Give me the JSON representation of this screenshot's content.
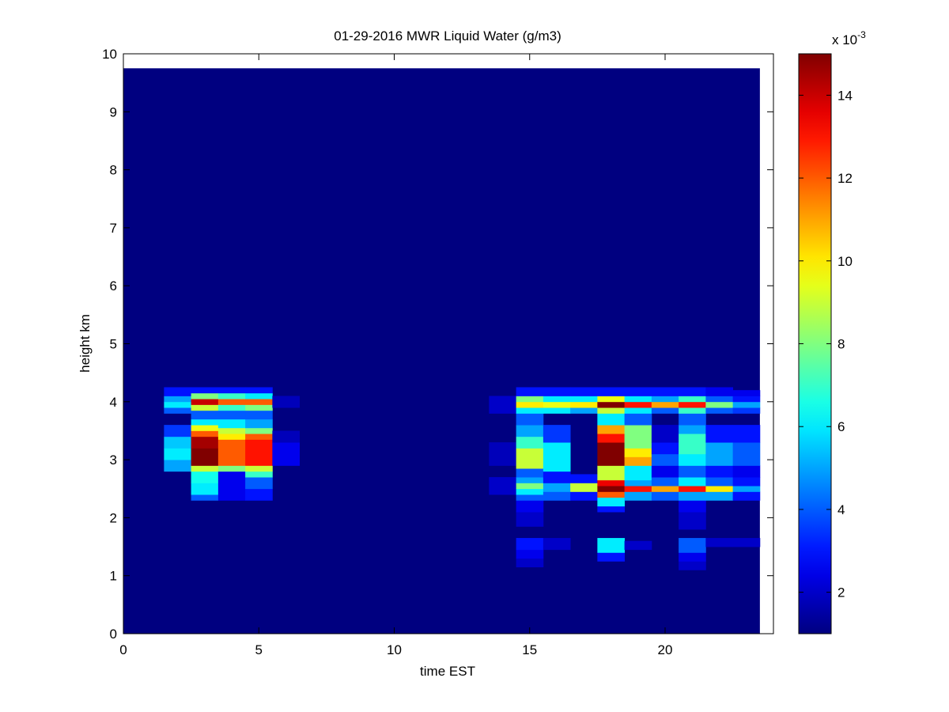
{
  "chart_data": {
    "type": "heatmap",
    "title": "01-29-2016 MWR Liquid Water (g/m3)",
    "xlabel": "time EST",
    "ylabel": "height km",
    "xlim": [
      0,
      24
    ],
    "ylim": [
      0,
      10
    ],
    "x_ticks": [
      0,
      5,
      10,
      15,
      20
    ],
    "y_ticks": [
      0,
      1,
      2,
      3,
      4,
      5,
      6,
      7,
      8,
      9,
      10
    ],
    "x_tick_labels": [
      "0",
      "5",
      "10",
      "15",
      "20"
    ],
    "y_tick_labels": [
      "0",
      "1",
      "2",
      "3",
      "4",
      "5",
      "6",
      "7",
      "8",
      "9",
      "10"
    ],
    "data_extent": {
      "x": [
        0,
        23.5
      ],
      "y": [
        0,
        9.75
      ]
    },
    "grid": false,
    "colormap": "jet",
    "colorbar": {
      "exponent_label": "x 10",
      "exponent": "-3",
      "range": [
        1,
        15
      ],
      "ticks": [
        2,
        4,
        6,
        8,
        10,
        12,
        14
      ],
      "tick_labels": [
        "2",
        "4",
        "6",
        "8",
        "10",
        "12",
        "14"
      ]
    },
    "background_value": 1,
    "columns": [
      {
        "x0": 1.5,
        "x1": 2.5,
        "cells": [
          {
            "y0": 2.8,
            "y1": 3.0,
            "v": 5.0
          },
          {
            "y0": 3.0,
            "y1": 3.2,
            "v": 6.0
          },
          {
            "y0": 3.2,
            "y1": 3.4,
            "v": 5.5
          },
          {
            "y0": 3.4,
            "y1": 3.6,
            "v": 3.5
          },
          {
            "y0": 3.8,
            "y1": 3.9,
            "v": 4.0
          },
          {
            "y0": 3.9,
            "y1": 4.0,
            "v": 6.0
          },
          {
            "y0": 4.0,
            "y1": 4.1,
            "v": 5.0
          },
          {
            "y0": 4.1,
            "y1": 4.25,
            "v": 3.0
          }
        ]
      },
      {
        "x0": 2.5,
        "x1": 3.5,
        "cells": [
          {
            "y0": 2.3,
            "y1": 2.4,
            "v": 4.0
          },
          {
            "y0": 2.4,
            "y1": 2.6,
            "v": 6.0
          },
          {
            "y0": 2.6,
            "y1": 2.8,
            "v": 6.5
          },
          {
            "y0": 2.8,
            "y1": 2.9,
            "v": 9.0
          },
          {
            "y0": 2.9,
            "y1": 3.2,
            "v": 15.0
          },
          {
            "y0": 3.2,
            "y1": 3.4,
            "v": 14.5
          },
          {
            "y0": 3.4,
            "y1": 3.5,
            "v": 12.0
          },
          {
            "y0": 3.5,
            "y1": 3.6,
            "v": 9.5
          },
          {
            "y0": 3.6,
            "y1": 3.7,
            "v": 6.0
          },
          {
            "y0": 3.7,
            "y1": 3.85,
            "v": 4.0
          },
          {
            "y0": 3.85,
            "y1": 3.95,
            "v": 9.0
          },
          {
            "y0": 3.95,
            "y1": 4.05,
            "v": 14.0
          },
          {
            "y0": 4.05,
            "y1": 4.15,
            "v": 8.0
          },
          {
            "y0": 4.15,
            "y1": 4.25,
            "v": 3.0
          }
        ]
      },
      {
        "x0": 3.5,
        "x1": 4.5,
        "cells": [
          {
            "y0": 2.3,
            "y1": 2.8,
            "v": 2.5
          },
          {
            "y0": 2.8,
            "y1": 2.9,
            "v": 8.0
          },
          {
            "y0": 2.9,
            "y1": 3.35,
            "v": 12.0
          },
          {
            "y0": 3.35,
            "y1": 3.45,
            "v": 10.0
          },
          {
            "y0": 3.45,
            "y1": 3.55,
            "v": 9.0
          },
          {
            "y0": 3.55,
            "y1": 3.7,
            "v": 6.0
          },
          {
            "y0": 3.7,
            "y1": 3.85,
            "v": 4.0
          },
          {
            "y0": 3.85,
            "y1": 3.95,
            "v": 7.0
          },
          {
            "y0": 3.95,
            "y1": 4.05,
            "v": 12.0
          },
          {
            "y0": 4.05,
            "y1": 4.15,
            "v": 7.0
          },
          {
            "y0": 4.15,
            "y1": 4.25,
            "v": 3.0
          }
        ]
      },
      {
        "x0": 4.5,
        "x1": 5.5,
        "cells": [
          {
            "y0": 2.3,
            "y1": 2.5,
            "v": 3.0
          },
          {
            "y0": 2.5,
            "y1": 2.7,
            "v": 4.0
          },
          {
            "y0": 2.7,
            "y1": 2.8,
            "v": 7.0
          },
          {
            "y0": 2.8,
            "y1": 2.9,
            "v": 9.0
          },
          {
            "y0": 2.9,
            "y1": 3.35,
            "v": 13.0
          },
          {
            "y0": 3.35,
            "y1": 3.45,
            "v": 12.0
          },
          {
            "y0": 3.45,
            "y1": 3.55,
            "v": 8.0
          },
          {
            "y0": 3.55,
            "y1": 3.7,
            "v": 5.0
          },
          {
            "y0": 3.7,
            "y1": 3.85,
            "v": 4.0
          },
          {
            "y0": 3.85,
            "y1": 3.95,
            "v": 8.0
          },
          {
            "y0": 3.95,
            "y1": 4.05,
            "v": 12.0
          },
          {
            "y0": 4.05,
            "y1": 4.15,
            "v": 6.0
          },
          {
            "y0": 4.15,
            "y1": 4.25,
            "v": 3.0
          }
        ]
      },
      {
        "x0": 5.5,
        "x1": 6.5,
        "cells": [
          {
            "y0": 2.9,
            "y1": 3.3,
            "v": 2.5
          },
          {
            "y0": 3.3,
            "y1": 3.5,
            "v": 1.8
          },
          {
            "y0": 3.9,
            "y1": 4.1,
            "v": 1.8
          }
        ]
      },
      {
        "x0": 13.5,
        "x1": 14.5,
        "cells": [
          {
            "y0": 2.4,
            "y1": 2.7,
            "v": 2.0
          },
          {
            "y0": 2.9,
            "y1": 3.3,
            "v": 1.8
          },
          {
            "y0": 3.8,
            "y1": 4.1,
            "v": 2.0
          }
        ]
      },
      {
        "x0": 14.5,
        "x1": 15.5,
        "cells": [
          {
            "y0": 1.15,
            "y1": 1.3,
            "v": 2.0
          },
          {
            "y0": 1.3,
            "y1": 1.45,
            "v": 2.5
          },
          {
            "y0": 1.45,
            "y1": 1.65,
            "v": 3.0
          },
          {
            "y0": 1.85,
            "y1": 2.1,
            "v": 2.0
          },
          {
            "y0": 2.1,
            "y1": 2.3,
            "v": 2.5
          },
          {
            "y0": 2.3,
            "y1": 2.4,
            "v": 4.0
          },
          {
            "y0": 2.4,
            "y1": 2.5,
            "v": 6.0
          },
          {
            "y0": 2.5,
            "y1": 2.6,
            "v": 8.0
          },
          {
            "y0": 2.6,
            "y1": 2.7,
            "v": 5.0
          },
          {
            "y0": 2.7,
            "y1": 2.85,
            "v": 4.0
          },
          {
            "y0": 2.85,
            "y1": 3.2,
            "v": 9.0
          },
          {
            "y0": 3.2,
            "y1": 3.4,
            "v": 7.0
          },
          {
            "y0": 3.4,
            "y1": 3.6,
            "v": 5.0
          },
          {
            "y0": 3.6,
            "y1": 3.8,
            "v": 4.0
          },
          {
            "y0": 3.8,
            "y1": 3.9,
            "v": 6.0
          },
          {
            "y0": 3.9,
            "y1": 4.0,
            "v": 10.0
          },
          {
            "y0": 4.0,
            "y1": 4.1,
            "v": 8.0
          },
          {
            "y0": 4.1,
            "y1": 4.25,
            "v": 3.0
          }
        ]
      },
      {
        "x0": 15.5,
        "x1": 16.5,
        "cells": [
          {
            "y0": 1.45,
            "y1": 1.65,
            "v": 2.0
          },
          {
            "y0": 2.3,
            "y1": 2.45,
            "v": 4.0
          },
          {
            "y0": 2.45,
            "y1": 2.6,
            "v": 5.0
          },
          {
            "y0": 2.6,
            "y1": 2.8,
            "v": 3.0
          },
          {
            "y0": 2.8,
            "y1": 3.3,
            "v": 6.0
          },
          {
            "y0": 3.3,
            "y1": 3.6,
            "v": 3.5
          },
          {
            "y0": 3.8,
            "y1": 3.9,
            "v": 6.0
          },
          {
            "y0": 3.9,
            "y1": 4.0,
            "v": 9.5
          },
          {
            "y0": 4.0,
            "y1": 4.1,
            "v": 6.0
          },
          {
            "y0": 4.1,
            "y1": 4.25,
            "v": 3.0
          }
        ]
      },
      {
        "x0": 16.5,
        "x1": 17.5,
        "cells": [
          {
            "y0": 2.3,
            "y1": 2.45,
            "v": 3.0
          },
          {
            "y0": 2.45,
            "y1": 2.6,
            "v": 9.0
          },
          {
            "y0": 2.6,
            "y1": 2.75,
            "v": 3.0
          },
          {
            "y0": 3.8,
            "y1": 3.9,
            "v": 5.0
          },
          {
            "y0": 3.9,
            "y1": 4.0,
            "v": 10.0
          },
          {
            "y0": 4.0,
            "y1": 4.1,
            "v": 6.0
          },
          {
            "y0": 4.1,
            "y1": 4.25,
            "v": 3.0
          }
        ]
      },
      {
        "x0": 17.5,
        "x1": 18.5,
        "cells": [
          {
            "y0": 1.25,
            "y1": 1.4,
            "v": 3.0
          },
          {
            "y0": 1.4,
            "y1": 1.65,
            "v": 6.0
          },
          {
            "y0": 2.1,
            "y1": 2.2,
            "v": 3.0
          },
          {
            "y0": 2.2,
            "y1": 2.35,
            "v": 6.0
          },
          {
            "y0": 2.35,
            "y1": 2.45,
            "v": 12.0
          },
          {
            "y0": 2.45,
            "y1": 2.55,
            "v": 15.0
          },
          {
            "y0": 2.55,
            "y1": 2.65,
            "v": 13.5
          },
          {
            "y0": 2.65,
            "y1": 2.9,
            "v": 9.0
          },
          {
            "y0": 2.9,
            "y1": 3.3,
            "v": 15.0
          },
          {
            "y0": 3.3,
            "y1": 3.45,
            "v": 13.0
          },
          {
            "y0": 3.45,
            "y1": 3.6,
            "v": 11.0
          },
          {
            "y0": 3.6,
            "y1": 3.8,
            "v": 6.0
          },
          {
            "y0": 3.8,
            "y1": 3.9,
            "v": 9.0
          },
          {
            "y0": 3.9,
            "y1": 4.0,
            "v": 15.0
          },
          {
            "y0": 4.0,
            "y1": 4.1,
            "v": 9.5
          },
          {
            "y0": 4.1,
            "y1": 4.25,
            "v": 3.0
          }
        ]
      },
      {
        "x0": 18.5,
        "x1": 19.5,
        "cells": [
          {
            "y0": 1.45,
            "y1": 1.6,
            "v": 2.0
          },
          {
            "y0": 2.3,
            "y1": 2.45,
            "v": 5.0
          },
          {
            "y0": 2.45,
            "y1": 2.55,
            "v": 13.0
          },
          {
            "y0": 2.55,
            "y1": 2.65,
            "v": 5.0
          },
          {
            "y0": 2.65,
            "y1": 2.9,
            "v": 6.0
          },
          {
            "y0": 2.9,
            "y1": 3.05,
            "v": 11.0
          },
          {
            "y0": 3.05,
            "y1": 3.2,
            "v": 10.0
          },
          {
            "y0": 3.2,
            "y1": 3.6,
            "v": 8.0
          },
          {
            "y0": 3.6,
            "y1": 3.8,
            "v": 4.0
          },
          {
            "y0": 3.8,
            "y1": 3.9,
            "v": 6.0
          },
          {
            "y0": 3.9,
            "y1": 4.0,
            "v": 13.0
          },
          {
            "y0": 4.0,
            "y1": 4.1,
            "v": 6.0
          },
          {
            "y0": 4.1,
            "y1": 4.25,
            "v": 3.0
          }
        ]
      },
      {
        "x0": 19.5,
        "x1": 20.5,
        "cells": [
          {
            "y0": 2.3,
            "y1": 2.45,
            "v": 4.0
          },
          {
            "y0": 2.45,
            "y1": 2.55,
            "v": 11.0
          },
          {
            "y0": 2.55,
            "y1": 2.7,
            "v": 4.0
          },
          {
            "y0": 2.7,
            "y1": 2.9,
            "v": 2.5
          },
          {
            "y0": 2.9,
            "y1": 3.1,
            "v": 4.0
          },
          {
            "y0": 3.1,
            "y1": 3.3,
            "v": 3.0
          },
          {
            "y0": 3.3,
            "y1": 3.6,
            "v": 2.0
          },
          {
            "y0": 3.8,
            "y1": 3.9,
            "v": 4.0
          },
          {
            "y0": 3.9,
            "y1": 4.0,
            "v": 11.0
          },
          {
            "y0": 4.0,
            "y1": 4.1,
            "v": 5.0
          },
          {
            "y0": 4.1,
            "y1": 4.25,
            "v": 3.0
          }
        ]
      },
      {
        "x0": 20.5,
        "x1": 21.5,
        "cells": [
          {
            "y0": 1.1,
            "y1": 1.25,
            "v": 2.0
          },
          {
            "y0": 1.25,
            "y1": 1.4,
            "v": 2.5
          },
          {
            "y0": 1.4,
            "y1": 1.65,
            "v": 4.0
          },
          {
            "y0": 1.8,
            "y1": 2.1,
            "v": 2.0
          },
          {
            "y0": 2.1,
            "y1": 2.3,
            "v": 2.5
          },
          {
            "y0": 2.3,
            "y1": 2.45,
            "v": 5.0
          },
          {
            "y0": 2.45,
            "y1": 2.55,
            "v": 13.0
          },
          {
            "y0": 2.55,
            "y1": 2.7,
            "v": 6.0
          },
          {
            "y0": 2.7,
            "y1": 2.9,
            "v": 4.0
          },
          {
            "y0": 2.9,
            "y1": 3.1,
            "v": 6.0
          },
          {
            "y0": 3.1,
            "y1": 3.45,
            "v": 7.0
          },
          {
            "y0": 3.45,
            "y1": 3.6,
            "v": 5.0
          },
          {
            "y0": 3.6,
            "y1": 3.8,
            "v": 4.0
          },
          {
            "y0": 3.8,
            "y1": 3.9,
            "v": 7.0
          },
          {
            "y0": 3.9,
            "y1": 4.0,
            "v": 13.0
          },
          {
            "y0": 4.0,
            "y1": 4.1,
            "v": 7.0
          },
          {
            "y0": 4.1,
            "y1": 4.25,
            "v": 3.0
          }
        ]
      },
      {
        "x0": 21.5,
        "x1": 22.5,
        "cells": [
          {
            "y0": 1.5,
            "y1": 1.65,
            "v": 2.0
          },
          {
            "y0": 2.3,
            "y1": 2.45,
            "v": 5.0
          },
          {
            "y0": 2.45,
            "y1": 2.55,
            "v": 10.0
          },
          {
            "y0": 2.55,
            "y1": 2.7,
            "v": 4.0
          },
          {
            "y0": 2.7,
            "y1": 2.9,
            "v": 3.0
          },
          {
            "y0": 2.9,
            "y1": 3.3,
            "v": 5.0
          },
          {
            "y0": 3.3,
            "y1": 3.6,
            "v": 3.0
          },
          {
            "y0": 3.8,
            "y1": 3.9,
            "v": 4.0
          },
          {
            "y0": 3.9,
            "y1": 4.0,
            "v": 8.0
          },
          {
            "y0": 4.0,
            "y1": 4.1,
            "v": 4.0
          },
          {
            "y0": 4.1,
            "y1": 4.25,
            "v": 2.5
          }
        ]
      },
      {
        "x0": 22.5,
        "x1": 23.5,
        "cells": [
          {
            "y0": 1.5,
            "y1": 1.65,
            "v": 2.0
          },
          {
            "y0": 2.3,
            "y1": 2.45,
            "v": 3.0
          },
          {
            "y0": 2.45,
            "y1": 2.55,
            "v": 5.0
          },
          {
            "y0": 2.55,
            "y1": 2.7,
            "v": 3.0
          },
          {
            "y0": 2.7,
            "y1": 2.9,
            "v": 2.5
          },
          {
            "y0": 2.9,
            "y1": 3.3,
            "v": 4.0
          },
          {
            "y0": 3.3,
            "y1": 3.6,
            "v": 3.0
          },
          {
            "y0": 3.8,
            "y1": 3.9,
            "v": 3.5
          },
          {
            "y0": 3.9,
            "y1": 4.0,
            "v": 5.0
          },
          {
            "y0": 4.0,
            "y1": 4.1,
            "v": 3.0
          },
          {
            "y0": 4.1,
            "y1": 4.2,
            "v": 2.5
          }
        ]
      }
    ]
  }
}
